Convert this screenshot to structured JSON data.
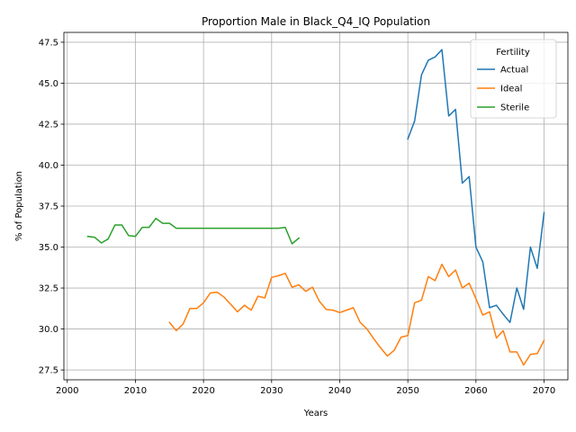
{
  "chart_data": {
    "type": "line",
    "title": "Proportion Male in Black_Q4_IQ Population",
    "xlabel": "Years",
    "ylabel": "% of Population",
    "xlim": [
      1999.5,
      2073.5
    ],
    "ylim": [
      26.9,
      48.1
    ],
    "xticks": [
      2000,
      2010,
      2020,
      2030,
      2040,
      2050,
      2060,
      2070
    ],
    "yticks": [
      27.5,
      30.0,
      32.5,
      35.0,
      37.5,
      40.0,
      42.5,
      45.0,
      47.5
    ],
    "ytick_labels": [
      "27.5",
      "30.0",
      "32.5",
      "35.0",
      "37.5",
      "40.0",
      "42.5",
      "45.0",
      "47.5"
    ],
    "grid": true,
    "legend": {
      "title": "Fertility",
      "placement": "top-right"
    },
    "series": [
      {
        "name": "Actual",
        "color": "#1f77b4",
        "x": [
          2050,
          2051,
          2052,
          2053,
          2054,
          2055,
          2056,
          2057,
          2058,
          2059,
          2060,
          2061,
          2062,
          2063,
          2064,
          2065,
          2066,
          2067,
          2068,
          2069,
          2070
        ],
        "y": [
          41.6,
          42.7,
          45.5,
          46.4,
          46.6,
          47.05,
          43.0,
          43.4,
          38.9,
          39.3,
          35.0,
          34.1,
          31.3,
          31.45,
          30.9,
          30.4,
          32.5,
          31.2,
          35.0,
          33.7,
          37.1
        ]
      },
      {
        "name": "Ideal",
        "color": "#ff7f0e",
        "x": [
          2015,
          2016,
          2017,
          2018,
          2019,
          2020,
          2021,
          2022,
          2023,
          2024,
          2025,
          2026,
          2027,
          2028,
          2029,
          2030,
          2031,
          2032,
          2033,
          2034,
          2035,
          2036,
          2037,
          2038,
          2039,
          2040,
          2041,
          2042,
          2043,
          2044,
          2045,
          2046,
          2047,
          2048,
          2049,
          2050,
          2051,
          2052,
          2053,
          2054,
          2055,
          2056,
          2057,
          2058,
          2059,
          2060,
          2061,
          2062,
          2063,
          2064,
          2065,
          2066,
          2067,
          2068,
          2069,
          2070
        ],
        "y": [
          30.4,
          29.9,
          30.3,
          31.25,
          31.25,
          31.6,
          32.2,
          32.25,
          31.95,
          31.5,
          31.05,
          31.45,
          31.15,
          32.0,
          31.9,
          33.15,
          33.25,
          33.4,
          32.55,
          32.7,
          32.3,
          32.55,
          31.7,
          31.2,
          31.15,
          31.0,
          31.15,
          31.3,
          30.4,
          30.0,
          29.4,
          28.85,
          28.35,
          28.7,
          29.5,
          29.6,
          31.6,
          31.75,
          33.2,
          32.95,
          33.95,
          33.2,
          33.6,
          32.5,
          32.8,
          31.85,
          30.85,
          31.05,
          29.45,
          29.9,
          28.6,
          28.6,
          27.8,
          28.45,
          28.5,
          29.3
        ]
      },
      {
        "name": "Sterile",
        "color": "#2ca02c",
        "x": [
          2003,
          2004,
          2005,
          2006,
          2007,
          2008,
          2009,
          2010,
          2011,
          2012,
          2013,
          2014,
          2015,
          2016,
          2017,
          2018,
          2019,
          2020,
          2021,
          2022,
          2023,
          2024,
          2025,
          2026,
          2027,
          2028,
          2029,
          2030,
          2031,
          2032,
          2033,
          2034
        ],
        "y": [
          35.65,
          35.6,
          35.25,
          35.5,
          36.35,
          36.35,
          35.7,
          35.65,
          36.2,
          36.2,
          36.75,
          36.45,
          36.45,
          36.15,
          36.15,
          36.15,
          36.15,
          36.15,
          36.15,
          36.15,
          36.15,
          36.15,
          36.15,
          36.15,
          36.15,
          36.15,
          36.15,
          36.15,
          36.15,
          36.2,
          35.2,
          35.55
        ]
      }
    ]
  }
}
